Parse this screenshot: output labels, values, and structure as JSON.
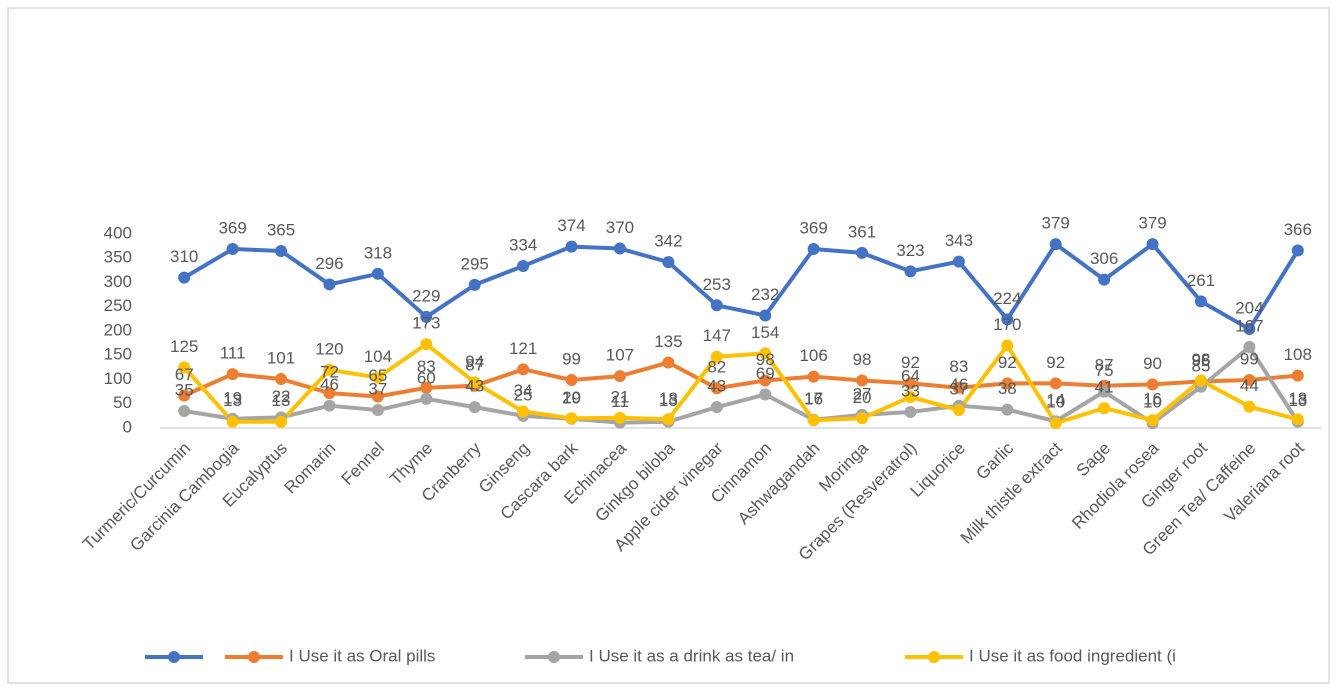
{
  "chart_data": {
    "type": "line",
    "categories": [
      "Turmeric/Curcumin",
      "Garcinia Cambogia",
      "Eucalyptus",
      "Romarin",
      "Fennel",
      "Thyme",
      "Cranberry",
      "Ginseng",
      "Cascara bark",
      "Echinacea",
      "Ginkgo biloba",
      "Apple cider vinegar",
      "Cinnamon",
      "Ashwagandah",
      "Moringa",
      "Grapes (Resveratrol)",
      "Liquorice",
      "Garlic",
      "Milk thistle extract",
      "Sage",
      "Rhodiola rosea",
      "Ginger root",
      "Green Tea/ Caffeine",
      "Valeriana root"
    ],
    "series": [
      {
        "color": "#4472c4",
        "values": [
          310,
          369,
          365,
          296,
          318,
          229,
          295,
          334,
          374,
          370,
          342,
          253,
          232,
          369,
          361,
          323,
          343,
          224,
          379,
          306,
          379,
          261,
          204,
          366
        ]
      },
      {
        "name": "I Use it as Oral pills",
        "color": "#ed7d31",
        "values": [
          67,
          111,
          101,
          72,
          65,
          83,
          87,
          121,
          99,
          107,
          135,
          82,
          98,
          106,
          98,
          92,
          83,
          92,
          92,
          87,
          90,
          96,
          99,
          108
        ]
      },
      {
        "name": "I Use it as  a drink as tea/ in",
        "color": "#a5a5a5",
        "values": [
          35,
          19,
          22,
          46,
          37,
          60,
          43,
          25,
          19,
          11,
          13,
          43,
          69,
          17,
          27,
          33,
          46,
          38,
          14,
          75,
          10,
          85,
          167,
          13
        ]
      },
      {
        "name": "I Use it as  food ingredient (i",
        "color": "#ffc000",
        "values": [
          125,
          13,
          13,
          120,
          104,
          173,
          94,
          34,
          20,
          21,
          18,
          147,
          154,
          16,
          20,
          64,
          37,
          170,
          10,
          41,
          16,
          98,
          44,
          18
        ]
      }
    ],
    "ylim": [
      0,
      400
    ],
    "yticks": [
      0,
      50,
      100,
      150,
      200,
      250,
      300,
      350,
      400
    ],
    "grid": false,
    "legend": "bottom"
  }
}
